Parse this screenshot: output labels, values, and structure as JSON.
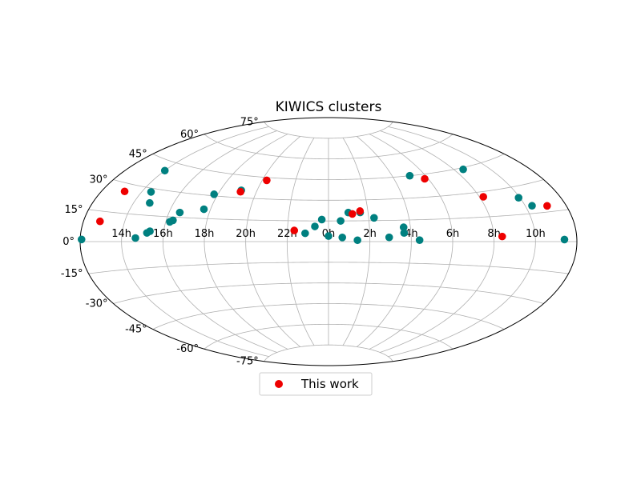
{
  "chart_data": {
    "type": "scatter",
    "projection": "aitoff",
    "title": "KIWICS clusters",
    "grid": true,
    "legend_placement": "bottom-center",
    "ra_ticks": [
      "14h",
      "16h",
      "18h",
      "20h",
      "22h",
      "0h",
      "2h",
      "4h",
      "6h",
      "8h",
      "10h"
    ],
    "ra_tick_values_deg": [
      -150,
      -120,
      -90,
      -60,
      -30,
      0,
      30,
      60,
      90,
      120,
      150
    ],
    "dec_ticks": [
      "-75°",
      "-60°",
      "-45°",
      "-30°",
      "-15°",
      "0°",
      "15°",
      "30°",
      "45°",
      "60°",
      "75°"
    ],
    "dec_tick_values_deg": [
      -75,
      -60,
      -45,
      -30,
      -15,
      0,
      15,
      30,
      45,
      60,
      75
    ],
    "series": [
      {
        "name": "",
        "color": "#008080",
        "points": [
          {
            "ra": -179,
            "dec": 1
          },
          {
            "ra": -140,
            "dec": 2
          },
          {
            "ra": -150,
            "dec": 40
          },
          {
            "ra": -143,
            "dec": 28
          },
          {
            "ra": -138,
            "dec": 22
          },
          {
            "ra": -132,
            "dec": 5
          },
          {
            "ra": -130,
            "dec": 6
          },
          {
            "ra": -117,
            "dec": 12
          },
          {
            "ra": -115,
            "dec": 13
          },
          {
            "ra": -112,
            "dec": 18
          },
          {
            "ra": -95,
            "dec": 21
          },
          {
            "ra": -93,
            "dec": 31
          },
          {
            "ra": -73,
            "dec": 35
          },
          {
            "ra": -17,
            "dec": 6
          },
          {
            "ra": -10,
            "dec": 11
          },
          {
            "ra": -5,
            "dec": 16
          },
          {
            "ra": 0,
            "dec": 4
          },
          {
            "ra": 9,
            "dec": 15
          },
          {
            "ra": 10,
            "dec": 3
          },
          {
            "ra": 15,
            "dec": 21
          },
          {
            "ra": 21,
            "dec": 1
          },
          {
            "ra": 24,
            "dec": 21
          },
          {
            "ra": 34,
            "dec": 17
          },
          {
            "ra": 44,
            "dec": 3
          },
          {
            "ra": 55,
            "dec": 10
          },
          {
            "ra": 55,
            "dec": 6
          },
          {
            "ra": 66,
            "dec": 1
          },
          {
            "ra": 76,
            "dec": 45
          },
          {
            "ra": 128,
            "dec": 44
          },
          {
            "ra": 149,
            "dec": 24
          },
          {
            "ra": 155,
            "dec": 19
          },
          {
            "ra": 171,
            "dec": 1
          }
        ]
      },
      {
        "name": "This work",
        "color": "#ee0000",
        "points": [
          {
            "ra": -168,
            "dec": 10
          },
          {
            "ra": -163,
            "dec": 26
          },
          {
            "ra": -73,
            "dec": 34
          },
          {
            "ra": -56,
            "dec": 43
          },
          {
            "ra": -25,
            "dec": 8
          },
          {
            "ra": 18,
            "dec": 20
          },
          {
            "ra": 24,
            "dec": 22
          },
          {
            "ra": 87,
            "dec": 42
          },
          {
            "ra": 123,
            "dec": 27
          },
          {
            "ra": 126,
            "dec": 3
          },
          {
            "ra": 166,
            "dec": 18
          }
        ]
      }
    ],
    "legend": [
      {
        "label": "This work",
        "color": "#ee0000"
      }
    ]
  }
}
